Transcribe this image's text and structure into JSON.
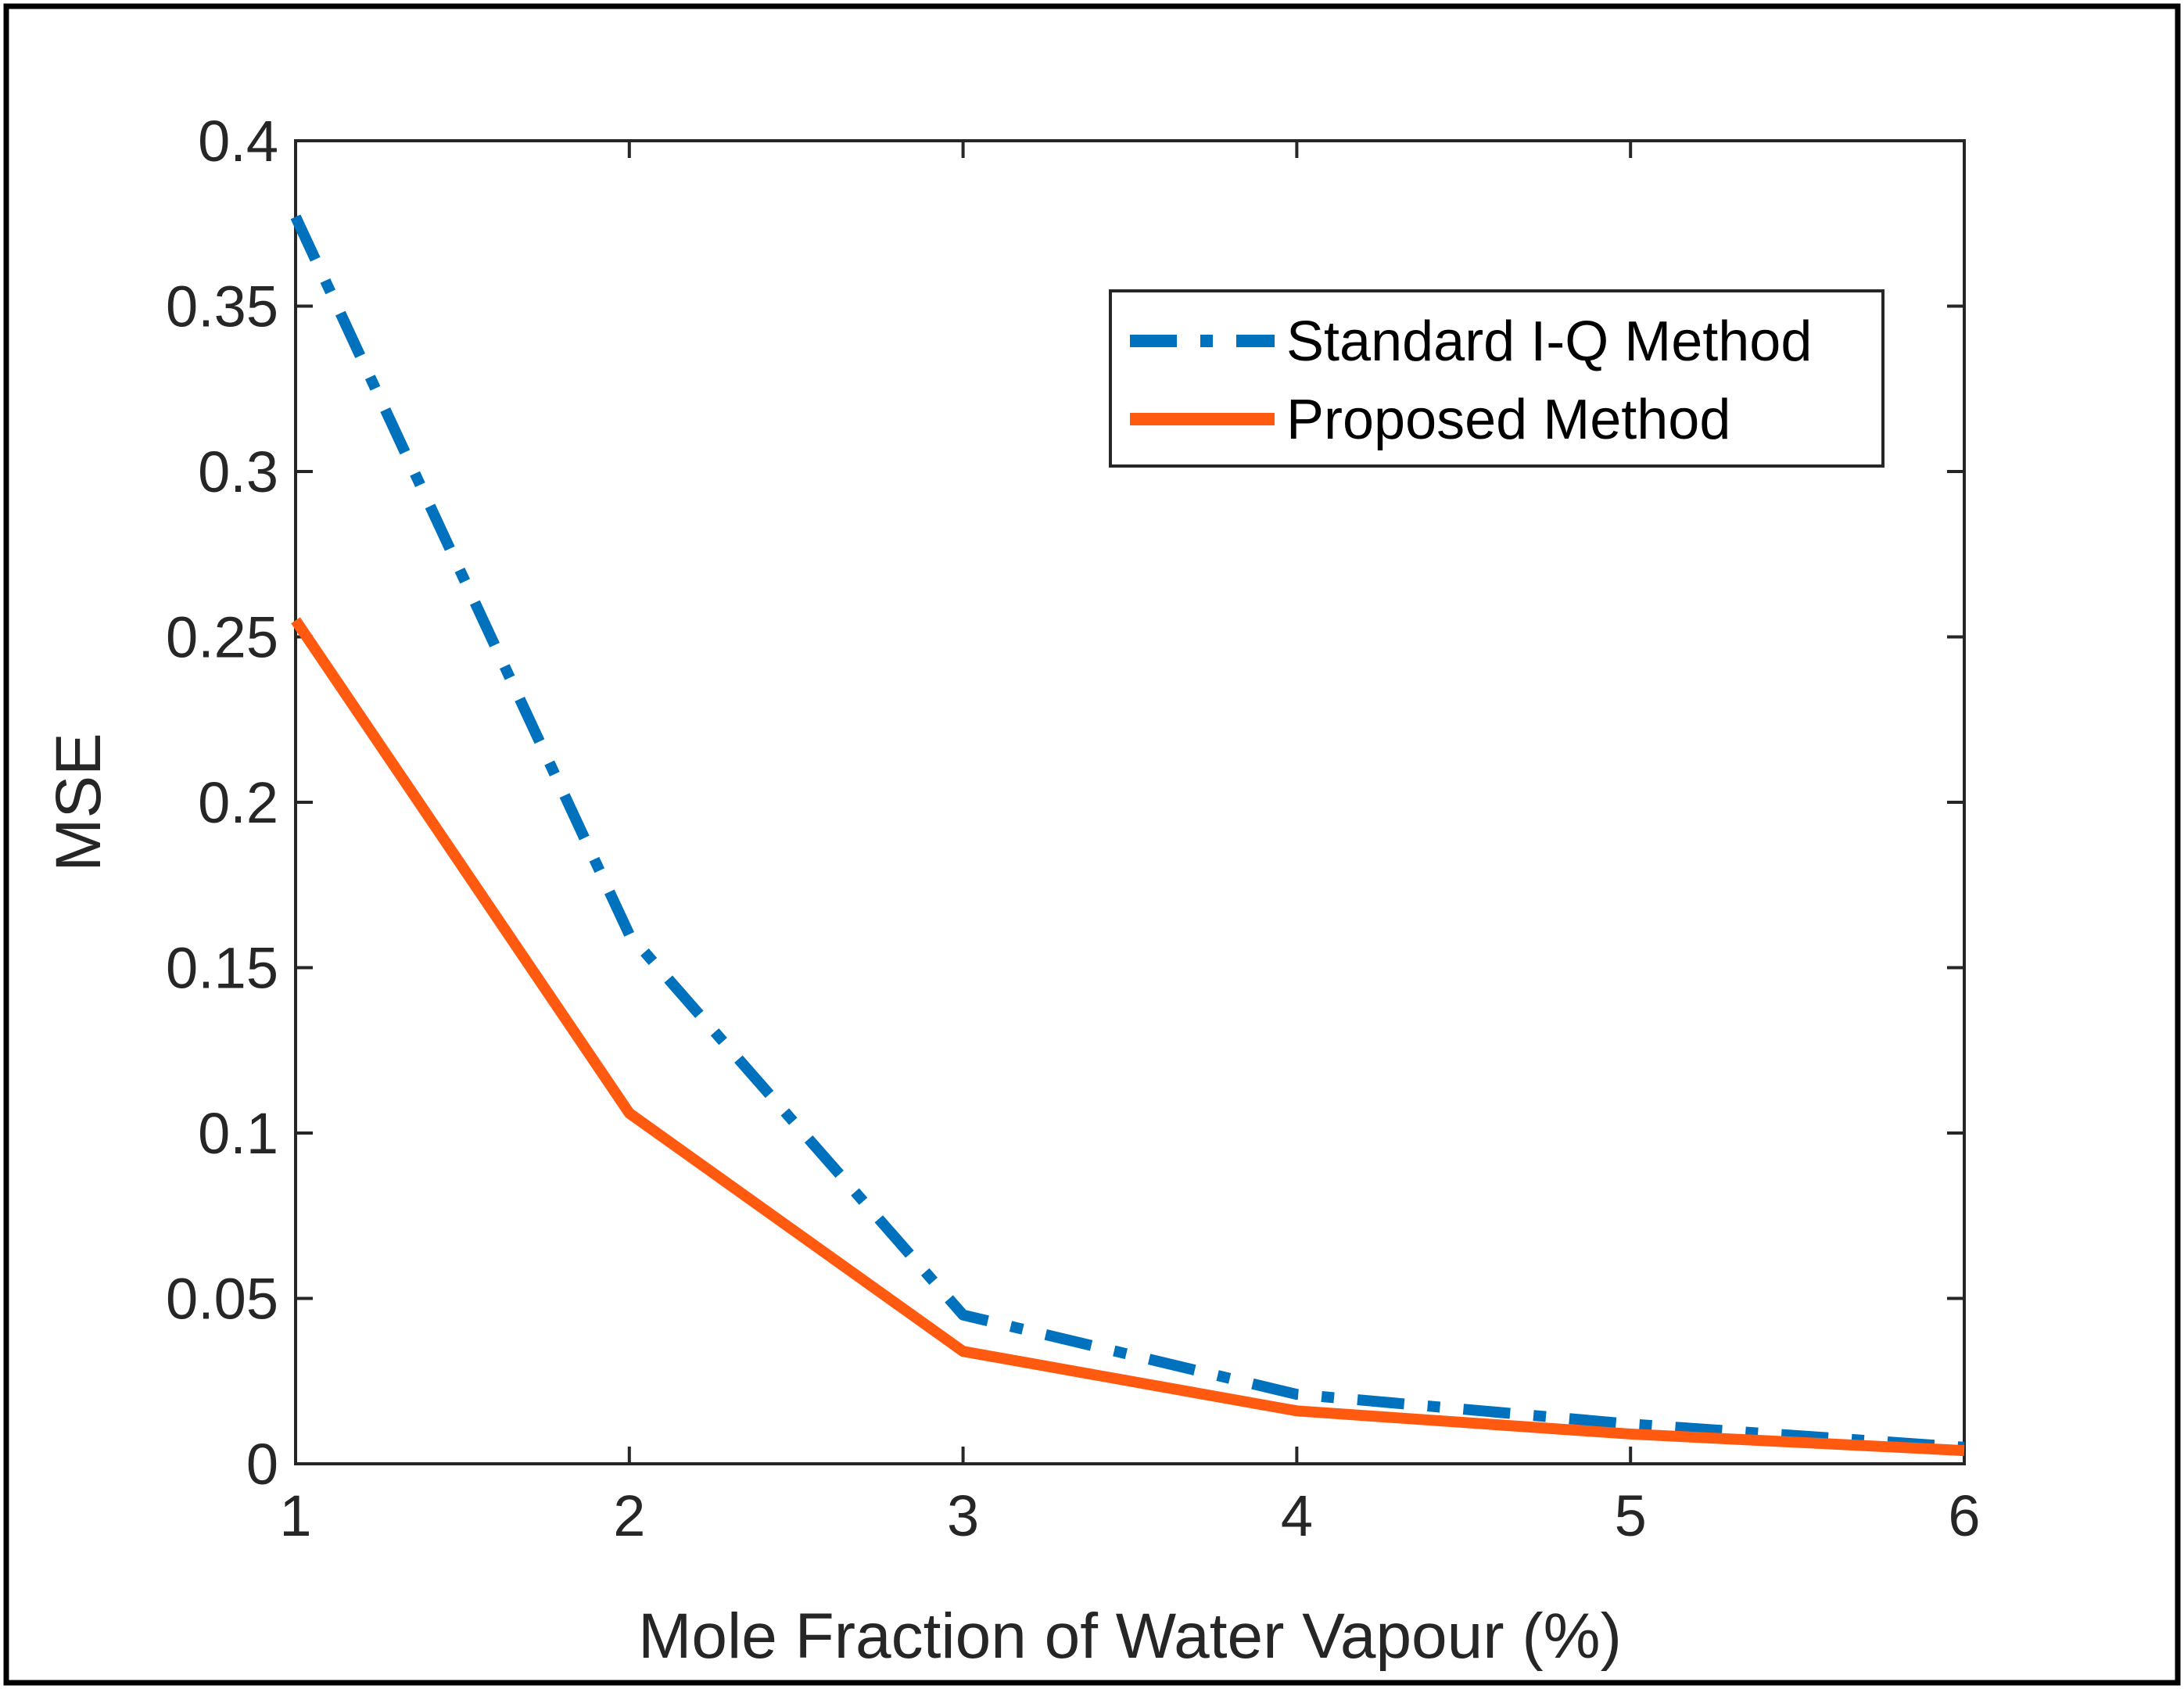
{
  "chart_data": {
    "type": "line",
    "title": "",
    "xlabel": "Mole Fraction of Water Vapour (%)",
    "ylabel": "MSE",
    "x": [
      1,
      2,
      3,
      4,
      5,
      6
    ],
    "xlim": [
      1,
      6
    ],
    "ylim": [
      0,
      0.4
    ],
    "xticks": [
      1,
      2,
      3,
      4,
      5,
      6
    ],
    "xtick_labels": [
      "1",
      "2",
      "3",
      "4",
      "5",
      "6"
    ],
    "yticks": [
      0,
      0.05,
      0.1,
      0.15,
      0.2,
      0.25,
      0.3,
      0.35,
      0.4
    ],
    "ytick_labels": [
      "0",
      "0.05",
      "0.1",
      "0.15",
      "0.2",
      "0.25",
      "0.3",
      "0.35",
      "0.4"
    ],
    "grid": false,
    "legend_position": "top-right",
    "series": [
      {
        "name": "Standard I-Q Method",
        "values": [
          0.377,
          0.16,
          0.045,
          0.021,
          0.012,
          0.005
        ],
        "color": "#0072BD",
        "style": "dash-dot"
      },
      {
        "name": "Proposed Method",
        "values": [
          0.255,
          0.106,
          0.034,
          0.016,
          0.009,
          0.004
        ],
        "color": "#FF5A10",
        "style": "solid"
      }
    ]
  }
}
